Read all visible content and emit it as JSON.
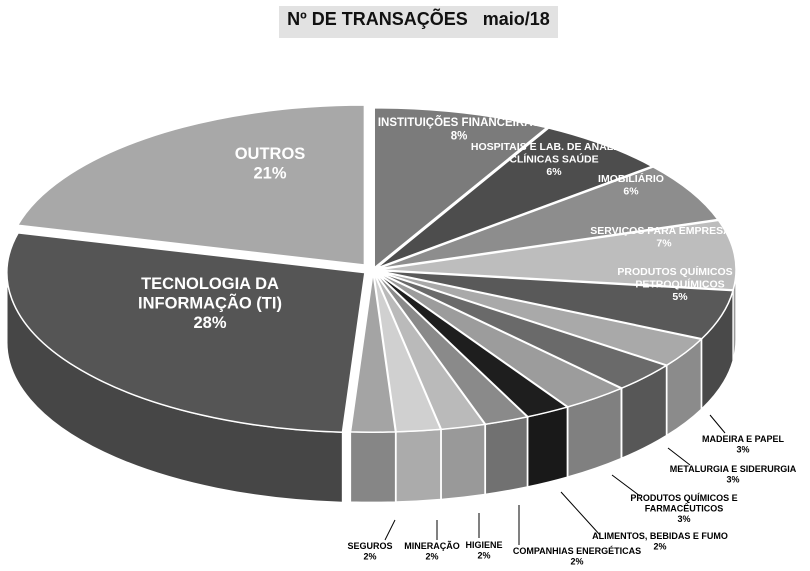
{
  "chart_data": {
    "type": "pie",
    "title": "Nº DE TRANSAÇÕES   maio/18",
    "slices": [
      {
        "label": "INSTITUIÇÕES FINANCEIRAS",
        "pct": "8%",
        "value": 8,
        "color": "#7b7b7b"
      },
      {
        "label": "HOSPITAIS E LAB. DE ANALISES CLÍNICAS SAÚDE",
        "pct": "6%",
        "value": 6,
        "color": "#4d4d4d"
      },
      {
        "label": "IMOBILIÁRIO",
        "pct": "6%",
        "value": 6,
        "color": "#8d8d8d"
      },
      {
        "label": "SERVIÇOS PARA EMPRESAS",
        "pct": "7%",
        "value": 7,
        "color": "#bdbdbd"
      },
      {
        "label": "PRODUTOS QUÍMICOS E PETROQUÍMICOS",
        "pct": "5%",
        "value": 5,
        "color": "#595959"
      },
      {
        "label": "MADEIRA E PAPEL",
        "pct": "3%",
        "value": 3,
        "color": "#a9a9a9"
      },
      {
        "label": "METALURGIA E SIDERURGIA",
        "pct": "3%",
        "value": 3,
        "color": "#6a6a6a"
      },
      {
        "label": "PRODUTOS QUÍMICOS E FARMACÊUTICOS",
        "pct": "3%",
        "value": 3,
        "color": "#9c9c9c"
      },
      {
        "label": "ALIMENTOS, BEBIDAS E FUMO",
        "pct": "2%",
        "value": 2,
        "color": "#1e1e1e"
      },
      {
        "label": "COMPANHIAS ENERGÉTICAS",
        "pct": "2%",
        "value": 2,
        "color": "#8a8a8a"
      },
      {
        "label": "HIGIENE",
        "pct": "2%",
        "value": 2,
        "color": "#bababa"
      },
      {
        "label": "MINERAÇÃO",
        "pct": "2%",
        "value": 2,
        "color": "#d0d0d0"
      },
      {
        "label": "SEGUROS",
        "pct": "2%",
        "value": 2,
        "color": "#a4a4a4"
      },
      {
        "label": "TECNOLOGIA DA INFORMAÇÃO (TI)",
        "pct": "28%",
        "value": 28,
        "color": "#555555"
      },
      {
        "label": "OUTROS",
        "pct": "21%",
        "value": 21,
        "color": "#a8a8a8"
      }
    ]
  }
}
